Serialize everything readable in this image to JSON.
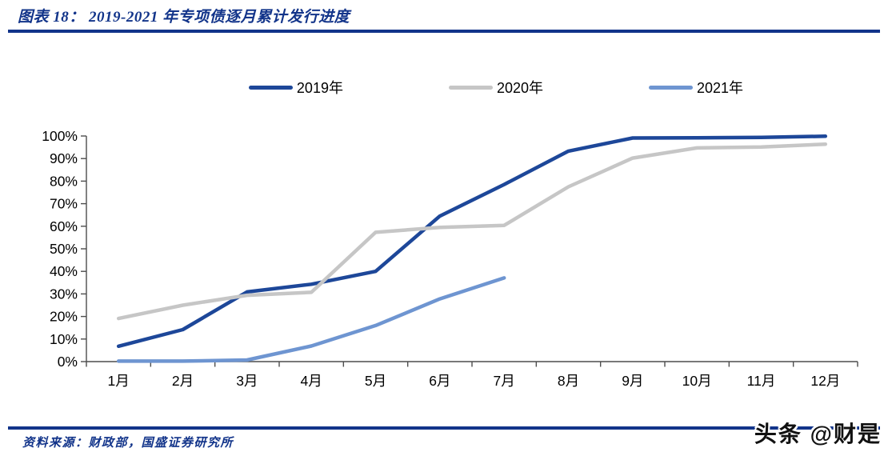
{
  "header": {
    "title": "图表 18：  2019-2021 年专项债逐月累计发行进度"
  },
  "footer": {
    "source": "资料来源：财政部，国盛证券研究所"
  },
  "watermark": "头条 @财是",
  "colors": {
    "accent_rule": "#12348a",
    "axis": "#4d4d4d",
    "tick_label": "#000000",
    "series_2019": "#1d4799",
    "series_2020": "#c6c6c6",
    "series_2021": "#6e95d1"
  },
  "chart_data": {
    "type": "line",
    "title": "2019-2021 年专项债逐月累计发行进度",
    "categories": [
      "1月",
      "2月",
      "3月",
      "4月",
      "5月",
      "6月",
      "7月",
      "8月",
      "9月",
      "10月",
      "11月",
      "12月"
    ],
    "series": [
      {
        "name": "2019年",
        "color": "#1d4799",
        "values": [
          6.8,
          14.2,
          30.9,
          34.3,
          40.0,
          64.5,
          78.5,
          93.3,
          99.1,
          99.2,
          99.4,
          99.9
        ]
      },
      {
        "name": "2020年",
        "color": "#c6c6c6",
        "values": [
          19.1,
          25.0,
          29.4,
          30.7,
          57.3,
          59.5,
          60.4,
          77.5,
          90.2,
          94.7,
          95.1,
          96.4
        ]
      },
      {
        "name": "2021年",
        "color": "#6e95d1",
        "values": [
          0.2,
          0.2,
          0.7,
          6.9,
          16.0,
          27.8,
          37.1,
          null,
          null,
          null,
          null,
          null
        ]
      }
    ],
    "xlabel": "",
    "ylabel": "",
    "ylim": [
      0,
      100
    ],
    "ytick_step": 10,
    "ytick_format": "percent",
    "grid": false,
    "legend_position": "top"
  }
}
